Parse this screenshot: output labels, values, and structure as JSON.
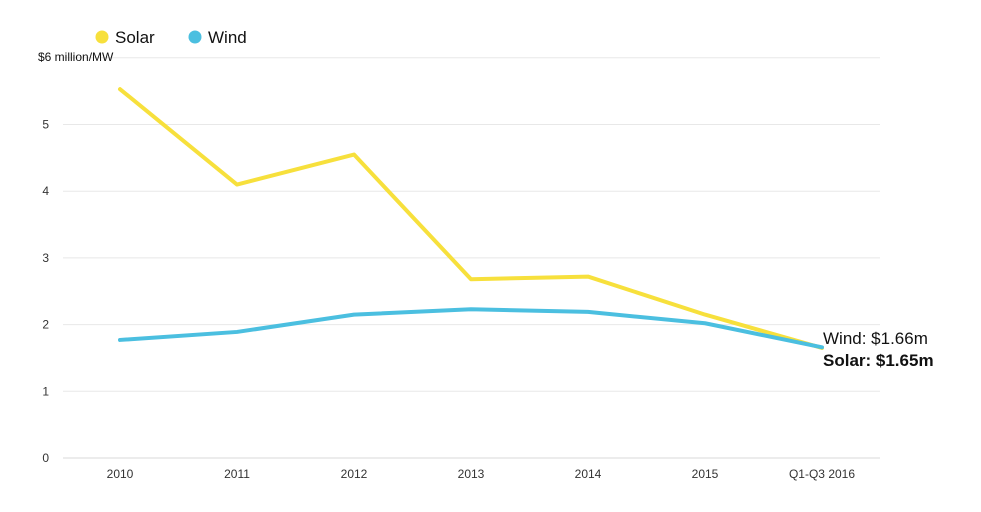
{
  "chart_data": {
    "type": "line",
    "title": "",
    "xlabel": "",
    "ylabel": "",
    "y_unit_label": "$6 million/MW",
    "categories": [
      "2010",
      "2011",
      "2012",
      "2013",
      "2014",
      "2015",
      "Q1-Q3 2016"
    ],
    "ylim": [
      0,
      6
    ],
    "yticks": [
      "0",
      "1",
      "2",
      "3",
      "4",
      "5"
    ],
    "grid": true,
    "legend_position": "top-left",
    "series": [
      {
        "name": "Solar",
        "color": "#f7e03c",
        "values": [
          5.53,
          4.1,
          4.55,
          2.68,
          2.72,
          2.15,
          1.65
        ]
      },
      {
        "name": "Wind",
        "color": "#4bbfe0",
        "values": [
          1.77,
          1.89,
          2.15,
          2.23,
          2.19,
          2.02,
          1.66
        ]
      }
    ],
    "annotations": [
      {
        "text": "Wind: $1.66m",
        "bold": false
      },
      {
        "text": "Solar: $1.65m",
        "bold": true
      }
    ]
  }
}
